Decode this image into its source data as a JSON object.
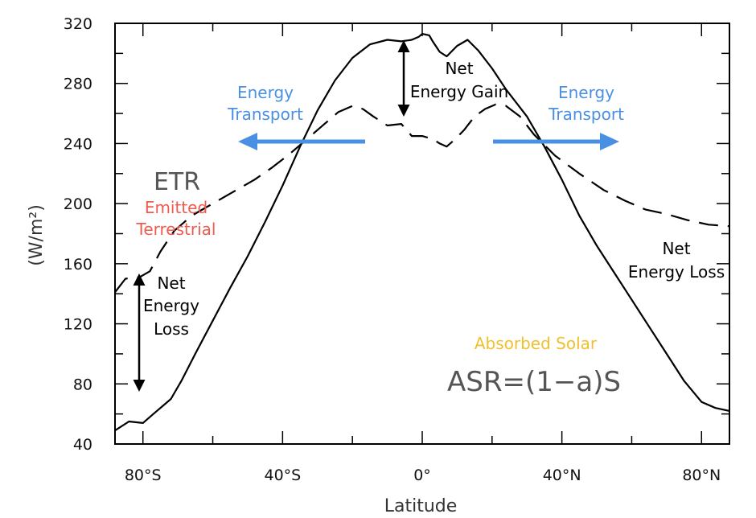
{
  "chart_data": {
    "type": "line",
    "xlabel": "Latitude",
    "ylabel": "(W/m²)",
    "xlim": [
      -88,
      88
    ],
    "ylim": [
      40,
      320
    ],
    "grid": false,
    "x_ticks": [
      -80,
      -40,
      0,
      40,
      80
    ],
    "x_tick_labels": [
      "80°S",
      "40°S",
      "0°",
      "40°N",
      "80°N"
    ],
    "y_ticks": [
      40,
      80,
      120,
      160,
      200,
      240,
      280,
      320
    ],
    "series": [
      {
        "style": "solid",
        "color": "#000000",
        "x": [
          -88,
          -84,
          -80,
          -77,
          -72,
          -69,
          -65,
          -60,
          -55,
          -50,
          -45,
          -40,
          -35,
          -30,
          -25,
          -20,
          -15,
          -10,
          -6,
          -3,
          -1,
          0,
          2,
          3,
          5,
          7,
          10,
          13,
          16,
          20,
          24,
          30,
          35,
          40,
          45,
          50,
          55,
          60,
          65,
          70,
          75,
          80,
          84,
          88
        ],
        "y": [
          49,
          55,
          54,
          60,
          70,
          82,
          100,
          122,
          144,
          165,
          188,
          212,
          238,
          262,
          282,
          297,
          306,
          309,
          308,
          309,
          311,
          313,
          312,
          308,
          301,
          298,
          305,
          309,
          302,
          290,
          276,
          258,
          238,
          216,
          192,
          172,
          154,
          136,
          118,
          100,
          82,
          68,
          64,
          62
        ]
      },
      {
        "style": "dashed",
        "color": "#000000",
        "x": [
          -88,
          -85,
          -81,
          -78,
          -75,
          -71,
          -66,
          -60,
          -54,
          -48,
          -43,
          -38,
          -33,
          -28,
          -24,
          -20,
          -17,
          -14,
          -10,
          -6,
          -3,
          0,
          3,
          5,
          7,
          9,
          12,
          15,
          18,
          21,
          24,
          28,
          32,
          38,
          45,
          52,
          58,
          64,
          70,
          76,
          82,
          88
        ],
        "y": [
          141,
          150,
          151,
          155,
          168,
          182,
          192,
          200,
          208,
          216,
          224,
          233,
          243,
          253,
          261,
          265,
          263,
          258,
          252,
          253,
          245,
          245,
          243,
          240,
          238,
          242,
          249,
          258,
          263,
          266,
          265,
          258,
          246,
          232,
          220,
          209,
          202,
          196,
          193,
          189,
          186,
          185
        ]
      }
    ],
    "annotations": [
      {
        "text": "ETR",
        "color": "#555555"
      },
      {
        "text": "Emitted Terrestrial",
        "color": "#f05a4f"
      },
      {
        "text": "Net Energy Loss",
        "color": "#000000"
      },
      {
        "text": "Net Energy Gain",
        "color": "#000000"
      },
      {
        "text": "Energy Transport",
        "color": "#4a90e2"
      },
      {
        "text": "Absorbed Solar",
        "color": "#f0c030"
      },
      {
        "text": "ASR=(1−a)S",
        "color": "#555555"
      }
    ]
  },
  "labels": {
    "etr": "ETR",
    "emitted_line1": "Emitted",
    "emitted_line2": "Terrestrial",
    "loss_left_1": "Net",
    "loss_left_2": "Energy",
    "loss_left_3": "Loss",
    "gain_1": "Net",
    "gain_2": "Energy Gain",
    "transport_left_1": "Energy",
    "transport_left_2": "Transport",
    "transport_right_1": "Energy",
    "transport_right_2": "Transport",
    "loss_right_1": "Net",
    "loss_right_2": "Energy Loss",
    "absorbed": "Absorbed Solar",
    "asr": "ASR=(1−a)S"
  },
  "colors": {
    "transport": "#4a90e2",
    "emitted": "#f05a4f",
    "absorbed": "#f0c030",
    "gray_text": "#555555"
  }
}
